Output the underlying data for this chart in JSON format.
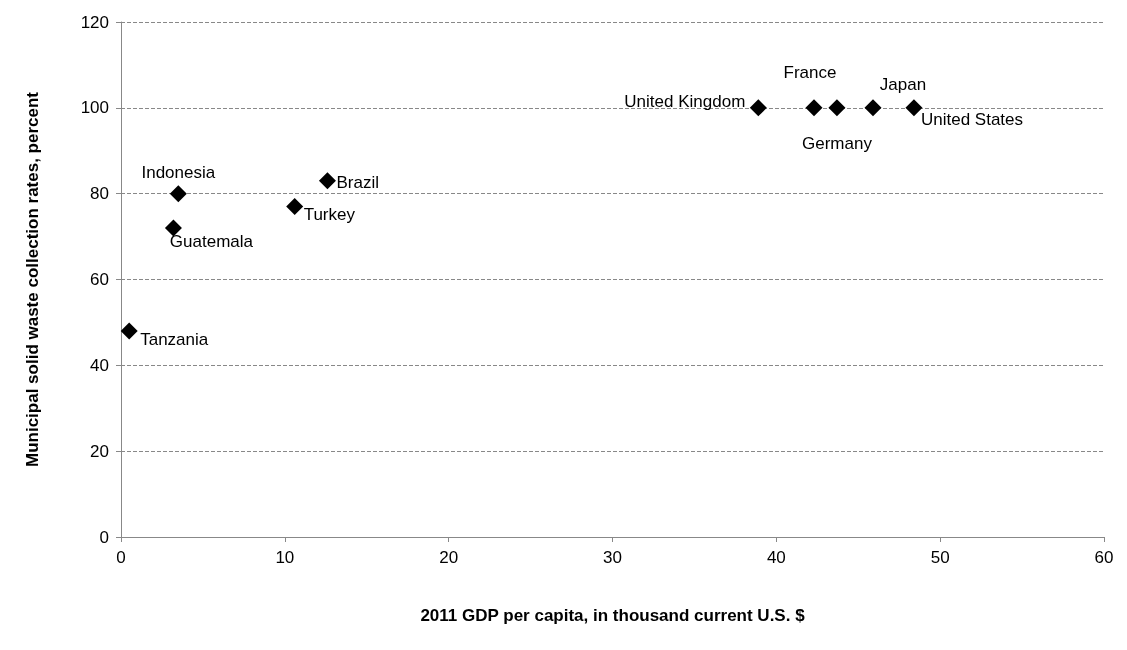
{
  "chart_data": {
    "type": "scatter",
    "xlabel": "2011 GDP per capita, in thousand current U.S. $",
    "ylabel": "Municipal solid waste collection rates, percent",
    "series": [
      {
        "color": "#000000",
        "x": [
          0.5,
          3.2,
          3.5,
          10.6,
          12.6,
          38.9,
          42.3,
          43.7,
          45.9,
          48.4
        ],
        "values": [
          48,
          72,
          80,
          77,
          83,
          100,
          100,
          100,
          100,
          100
        ]
      }
    ],
    "annotations": [
      {
        "text": "Tanzania",
        "x": 0.5,
        "y": 48
      },
      {
        "text": "Guatemala",
        "x": 3.2,
        "y": 72
      },
      {
        "text": "Indonesia",
        "x": 3.5,
        "y": 80
      },
      {
        "text": "Turkey",
        "x": 10.6,
        "y": 77
      },
      {
        "text": "Brazil",
        "x": 12.6,
        "y": 83
      },
      {
        "text": "United Kingdom",
        "x": 38.9,
        "y": 100
      },
      {
        "text": "France",
        "x": 42.3,
        "y": 100
      },
      {
        "text": "Germany",
        "x": 43.7,
        "y": 100
      },
      {
        "text": "Japan",
        "x": 45.9,
        "y": 100
      },
      {
        "text": "United States",
        "x": 48.4,
        "y": 100
      }
    ],
    "xlim": [
      0,
      60
    ],
    "xticks": [
      0,
      10,
      20,
      30,
      40,
      50,
      60
    ],
    "ylim": [
      0,
      120
    ],
    "yticks": [
      0,
      20,
      40,
      60,
      80,
      100,
      120
    ],
    "grid": "y",
    "marker": "diamond"
  }
}
